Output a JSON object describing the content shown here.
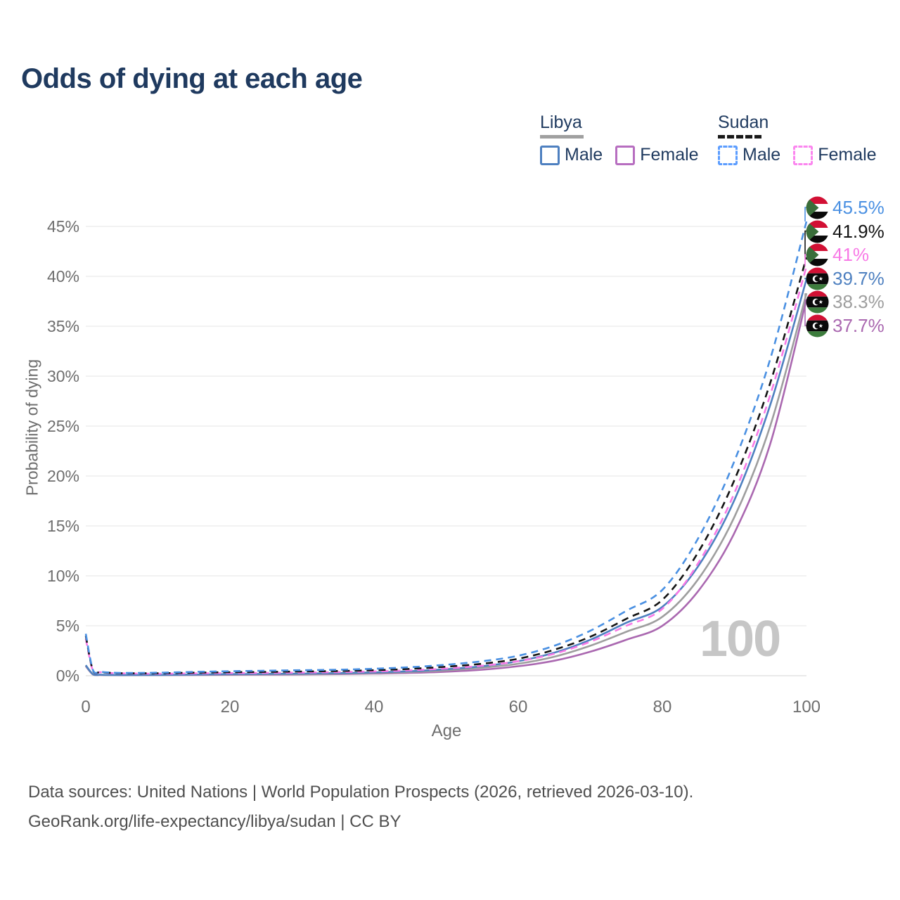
{
  "header": {
    "title": "Odds of dying at each age"
  },
  "legend": {
    "groups": [
      {
        "label": "Libya",
        "line_style": "solid",
        "line_color": "#a0a0a0",
        "items": [
          {
            "label": "Male",
            "swatch_color": "#4e80c0",
            "swatch_style": "solid"
          },
          {
            "label": "Female",
            "swatch_color": "#b76ec0",
            "swatch_style": "solid"
          }
        ]
      },
      {
        "label": "Sudan",
        "line_style": "dashed",
        "line_color": "#1a1a1a",
        "items": [
          {
            "label": "Male",
            "swatch_color": "#5c9dff",
            "swatch_style": "dashed"
          },
          {
            "label": "Female",
            "swatch_color": "#fb86ef",
            "swatch_style": "dashed"
          }
        ]
      }
    ]
  },
  "chart_data": {
    "type": "line",
    "title": "Odds of dying at each age",
    "xlabel": "Age",
    "ylabel": "Probability of dying",
    "xlim": [
      0,
      100
    ],
    "ylim": [
      0,
      47
    ],
    "xticks": [
      0,
      20,
      40,
      60,
      80,
      100
    ],
    "yticks": [
      0,
      5,
      10,
      15,
      20,
      25,
      30,
      35,
      40,
      45
    ],
    "ytick_suffix": "%",
    "grid": "horizontal",
    "legend_position": "top-right",
    "ages": [
      0,
      1,
      2,
      3,
      5,
      10,
      15,
      20,
      25,
      30,
      35,
      40,
      45,
      50,
      55,
      60,
      65,
      70,
      75,
      80,
      85,
      90,
      95,
      100
    ],
    "series": [
      {
        "name": "Sudan Male",
        "country": "Sudan",
        "sex": "Male",
        "color": "#4a90e2",
        "dashed": true,
        "flag": "sudan",
        "end_label": "45.5%",
        "values": [
          4.2,
          0.55,
          0.4,
          0.33,
          0.28,
          0.3,
          0.38,
          0.45,
          0.5,
          0.55,
          0.6,
          0.7,
          0.85,
          1.1,
          1.45,
          2.0,
          3.0,
          4.5,
          6.5,
          8.6,
          13.8,
          21.5,
          31.8,
          45.5
        ]
      },
      {
        "name": "Sudan Both sexes",
        "country": "Sudan",
        "sex": "Both",
        "color": "#141414",
        "dashed": true,
        "flag": "sudan",
        "end_label": "41.9%",
        "values": [
          4.0,
          0.5,
          0.37,
          0.3,
          0.25,
          0.25,
          0.3,
          0.35,
          0.38,
          0.42,
          0.47,
          0.55,
          0.68,
          0.9,
          1.2,
          1.7,
          2.6,
          3.9,
          5.7,
          7.6,
          12.4,
          19.6,
          29.4,
          41.9
        ]
      },
      {
        "name": "Sudan Female",
        "country": "Sudan",
        "sex": "Female",
        "color": "#f87ae6",
        "dashed": true,
        "flag": "sudan",
        "end_label": "41%",
        "values": [
          3.7,
          0.47,
          0.35,
          0.28,
          0.23,
          0.2,
          0.23,
          0.26,
          0.28,
          0.31,
          0.36,
          0.43,
          0.54,
          0.72,
          1.0,
          1.45,
          2.2,
          3.4,
          5.0,
          6.7,
          11.3,
          18.3,
          28.2,
          41.0
        ]
      },
      {
        "name": "Libya Male",
        "country": "Libya",
        "sex": "Male",
        "color": "#4e80c0",
        "dashed": false,
        "flag": "libya",
        "end_label": "39.7%",
        "values": [
          1.05,
          0.15,
          0.1,
          0.08,
          0.07,
          0.08,
          0.12,
          0.16,
          0.18,
          0.21,
          0.26,
          0.33,
          0.45,
          0.65,
          0.95,
          1.45,
          2.3,
          3.6,
          5.3,
          6.9,
          11.0,
          17.6,
          27.2,
          39.7
        ]
      },
      {
        "name": "Libya Both sexes",
        "country": "Libya",
        "sex": "Both",
        "color": "#9e9e9e",
        "dashed": false,
        "flag": "libya",
        "end_label": "38.3%",
        "values": [
          1.0,
          0.13,
          0.09,
          0.07,
          0.06,
          0.07,
          0.1,
          0.13,
          0.15,
          0.17,
          0.21,
          0.27,
          0.37,
          0.53,
          0.8,
          1.2,
          1.9,
          3.0,
          4.4,
          5.9,
          9.7,
          15.9,
          25.1,
          38.3
        ]
      },
      {
        "name": "Libya Female",
        "country": "Libya",
        "sex": "Female",
        "color": "#aa68b0",
        "dashed": false,
        "flag": "libya",
        "end_label": "37.7%",
        "values": [
          0.95,
          0.12,
          0.08,
          0.06,
          0.05,
          0.06,
          0.07,
          0.09,
          0.11,
          0.13,
          0.16,
          0.21,
          0.28,
          0.4,
          0.6,
          0.95,
          1.5,
          2.4,
          3.6,
          5.0,
          8.5,
          14.3,
          23.3,
          37.7
        ]
      }
    ]
  },
  "watermark": "100",
  "footer": {
    "line1": "Data sources: United Nations | World Population Prospects (2026, retrieved 2026-03-10).",
    "line2": "GeoRank.org/life-expectancy/libya/sudan | CC BY"
  }
}
